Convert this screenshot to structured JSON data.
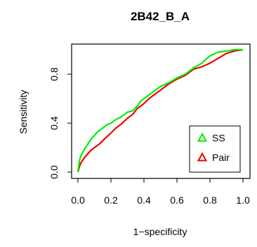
{
  "chart_data": {
    "type": "line",
    "title": "2B42_B_A",
    "xlabel": "1−specificity",
    "ylabel": "Sensitivity",
    "xlim": [
      0,
      1
    ],
    "ylim": [
      0,
      1
    ],
    "x_ticks": [
      "0.0",
      "0.2",
      "0.4",
      "0.6",
      "0.8",
      "1.0"
    ],
    "y_ticks": [
      "0.0",
      "0.4",
      "0.8"
    ],
    "grid": false,
    "legend_position": "bottom-right",
    "series": [
      {
        "name": "SS",
        "color": "#00ee00",
        "marker": "triangle",
        "x": [
          0,
          0.01,
          0.02,
          0.04,
          0.06,
          0.08,
          0.1,
          0.12,
          0.15,
          0.18,
          0.2,
          0.23,
          0.26,
          0.3,
          0.33,
          0.36,
          0.38,
          0.4,
          0.43,
          0.46,
          0.5,
          0.55,
          0.6,
          0.65,
          0.7,
          0.75,
          0.8,
          0.85,
          0.9,
          0.95,
          1.0
        ],
        "y": [
          0,
          0.1,
          0.14,
          0.19,
          0.23,
          0.27,
          0.3,
          0.33,
          0.36,
          0.39,
          0.4,
          0.43,
          0.45,
          0.49,
          0.5,
          0.54,
          0.58,
          0.6,
          0.63,
          0.66,
          0.7,
          0.73,
          0.77,
          0.8,
          0.85,
          0.89,
          0.95,
          0.98,
          0.99,
          1.0,
          1.0
        ]
      },
      {
        "name": "Pair",
        "color": "#ee0000",
        "marker": "triangle",
        "x": [
          0,
          0.01,
          0.02,
          0.04,
          0.06,
          0.08,
          0.1,
          0.13,
          0.16,
          0.2,
          0.23,
          0.26,
          0.3,
          0.33,
          0.36,
          0.4,
          0.43,
          0.46,
          0.5,
          0.55,
          0.6,
          0.65,
          0.7,
          0.75,
          0.8,
          0.85,
          0.9,
          0.95,
          1.0
        ],
        "y": [
          0,
          0.05,
          0.08,
          0.12,
          0.15,
          0.18,
          0.2,
          0.23,
          0.27,
          0.32,
          0.36,
          0.39,
          0.44,
          0.47,
          0.52,
          0.56,
          0.6,
          0.63,
          0.67,
          0.72,
          0.76,
          0.79,
          0.84,
          0.86,
          0.89,
          0.93,
          0.97,
          0.99,
          1.0
        ]
      }
    ]
  }
}
